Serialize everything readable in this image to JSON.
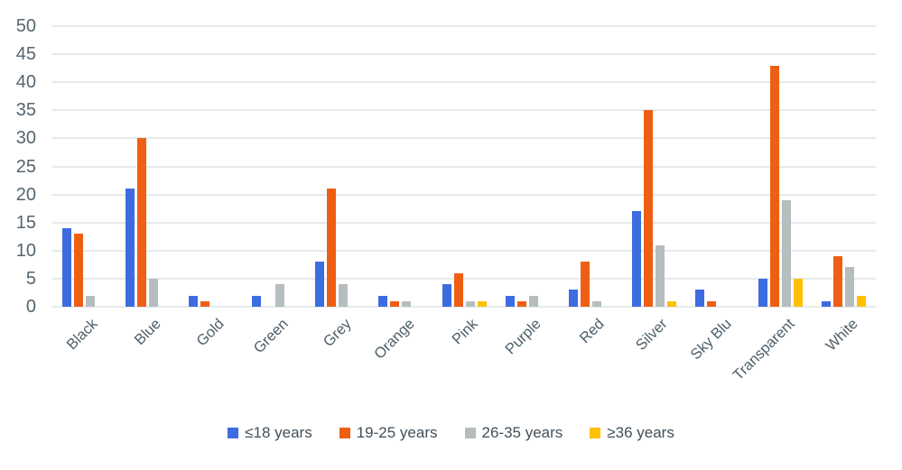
{
  "chart_data": {
    "type": "bar",
    "title": "",
    "xlabel": "",
    "ylabel": "",
    "categories": [
      "Black",
      "Blue",
      "Gold",
      "Green",
      "Grey",
      "Orange",
      "Pink",
      "Purple",
      "Red",
      "Silver",
      "Sky Blu",
      "Transparent",
      "White"
    ],
    "series": [
      {
        "name": "≤18 years",
        "color": "#3d6ce0",
        "values": [
          14,
          21,
          2,
          2,
          8,
          2,
          4,
          2,
          3,
          17,
          3,
          5,
          1
        ]
      },
      {
        "name": "19-25 years",
        "color": "#ee5f13",
        "values": [
          13,
          30,
          1,
          0,
          21,
          1,
          6,
          1,
          8,
          35,
          1,
          43,
          9
        ]
      },
      {
        "name": "26-35 years",
        "color": "#b6bdbf",
        "values": [
          2,
          5,
          0,
          4,
          4,
          1,
          1,
          2,
          1,
          11,
          0,
          19,
          7
        ]
      },
      {
        "name": "≥36 years",
        "color": "#ffc000",
        "values": [
          0,
          0,
          0,
          0,
          0,
          0,
          1,
          0,
          0,
          1,
          0,
          5,
          2
        ]
      }
    ],
    "ylim": [
      0,
      50
    ],
    "yticks": [
      0,
      5,
      10,
      15,
      20,
      25,
      30,
      35,
      40,
      45,
      50
    ],
    "grid": "horizontal",
    "legend_position": "bottom"
  },
  "colors": {
    "gridline": "#e4eaea",
    "tick_label": "#54656f",
    "category_label": "#4e5f69",
    "legend_text": "#404f59",
    "background": "#ffffff"
  }
}
